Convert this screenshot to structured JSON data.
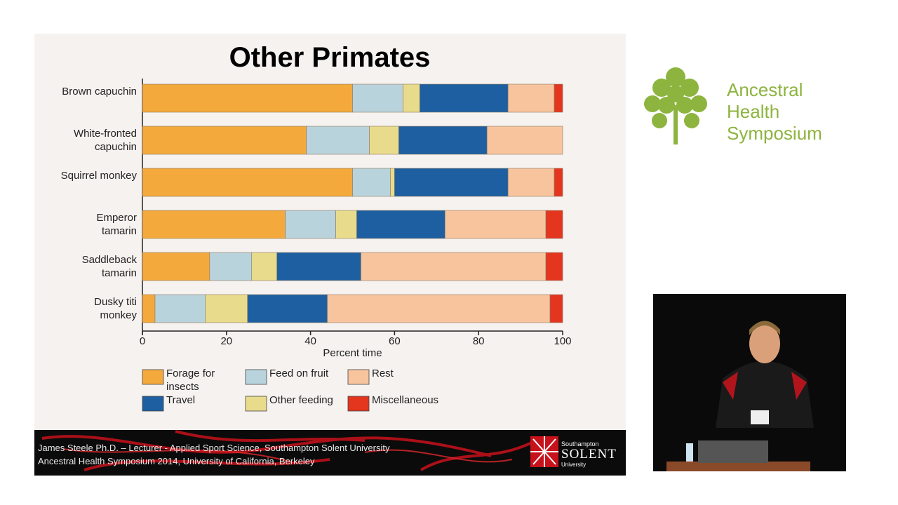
{
  "chart_data": {
    "type": "stacked-barh",
    "title": "Other Primates",
    "x_label": "Percent time",
    "categories": [
      "Brown capuchin",
      "White-fronted capuchin",
      "Squirrel monkey",
      "Emperor tamarin",
      "Saddleback tamarin",
      "Dusky titi monkey"
    ],
    "series": [
      {
        "name": "Forage for insects",
        "color": "#f4a93c",
        "values": [
          50,
          39,
          50,
          34,
          16,
          3
        ]
      },
      {
        "name": "Feed on fruit",
        "color": "#b9d3dc",
        "values": [
          12,
          15,
          9,
          12,
          10,
          12
        ]
      },
      {
        "name": "Other feeding",
        "color": "#e8dc8c",
        "values": [
          4,
          7,
          1,
          5,
          6,
          10
        ]
      },
      {
        "name": "Travel",
        "color": "#1d5fa0",
        "values": [
          21,
          21,
          27,
          21,
          20,
          19
        ]
      },
      {
        "name": "Rest",
        "color": "#f8c49e",
        "values": [
          11,
          18,
          11,
          24,
          44,
          53
        ]
      },
      {
        "name": "Miscellaneous",
        "color": "#e4351f",
        "values": [
          2,
          0,
          2,
          4,
          4,
          3
        ]
      }
    ],
    "xlim": [
      0,
      100
    ],
    "xticks": [
      0,
      20,
      40,
      60,
      80,
      100
    ],
    "legend": "bottom"
  },
  "footer": {
    "lines": [
      "James Steele Ph.D. – Lecturer - Applied Sport Science, Southampton Solent University",
      "Ancestral Health Symposium 2014, University of California, Berkeley"
    ]
  },
  "solent_logo": {
    "top": "Southampton",
    "name": "SOLENT",
    "bottom": "University"
  },
  "symposium_logo": {
    "lines": [
      "Ancestral",
      "Health",
      "Symposium"
    ]
  }
}
